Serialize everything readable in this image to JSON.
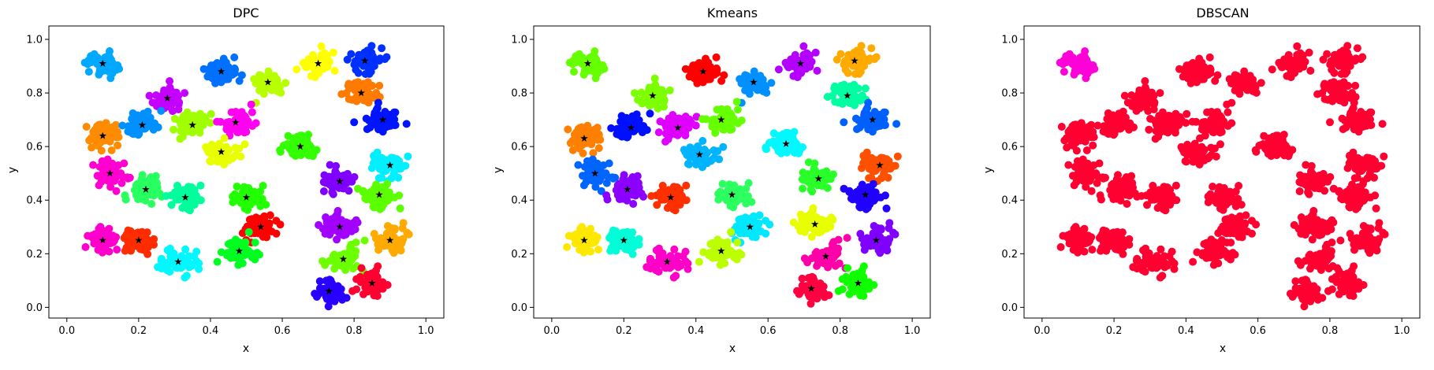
{
  "chart_data": [
    {
      "type": "scatter",
      "title": "DPC",
      "xlabel": "x",
      "ylabel": "y",
      "xlim": [
        -0.05,
        1.05
      ],
      "ylim": [
        -0.04,
        1.05
      ],
      "xticks": [
        "0.0",
        "0.2",
        "0.4",
        "0.6",
        "0.8",
        "1.0"
      ],
      "yticks": [
        "0.0",
        "0.2",
        "0.4",
        "0.6",
        "0.8",
        "1.0"
      ],
      "grid": false,
      "clusters": [
        {
          "center": [
            0.1,
            0.91
          ],
          "color": "#00a8ff"
        },
        {
          "center": [
            0.43,
            0.88
          ],
          "color": "#0070ff"
        },
        {
          "center": [
            0.56,
            0.84
          ],
          "color": "#b8ff00"
        },
        {
          "center": [
            0.7,
            0.91
          ],
          "color": "#ffff00"
        },
        {
          "center": [
            0.83,
            0.92
          ],
          "color": "#0030ff"
        },
        {
          "center": [
            0.28,
            0.78
          ],
          "color": "#c400ff"
        },
        {
          "center": [
            0.82,
            0.8
          ],
          "color": "#ff7a00"
        },
        {
          "center": [
            0.1,
            0.64
          ],
          "color": "#ff8c00"
        },
        {
          "center": [
            0.21,
            0.68
          ],
          "color": "#0090ff"
        },
        {
          "center": [
            0.35,
            0.68
          ],
          "color": "#a0ff00"
        },
        {
          "center": [
            0.47,
            0.69
          ],
          "color": "#ff00f0"
        },
        {
          "center": [
            0.88,
            0.7
          ],
          "color": "#0014ff"
        },
        {
          "center": [
            0.65,
            0.6
          ],
          "color": "#34ff00"
        },
        {
          "center": [
            0.43,
            0.58
          ],
          "color": "#e8ff00"
        },
        {
          "center": [
            0.12,
            0.5
          ],
          "color": "#ff00d0"
        },
        {
          "center": [
            0.22,
            0.44
          ],
          "color": "#28ff60"
        },
        {
          "center": [
            0.33,
            0.41
          ],
          "color": "#00ff9c"
        },
        {
          "center": [
            0.5,
            0.41
          ],
          "color": "#22ff00"
        },
        {
          "center": [
            0.76,
            0.47
          ],
          "color": "#8000ff"
        },
        {
          "center": [
            0.9,
            0.53
          ],
          "color": "#00f0ff"
        },
        {
          "center": [
            0.87,
            0.42
          ],
          "color": "#5cff00"
        },
        {
          "center": [
            0.54,
            0.3
          ],
          "color": "#ff0000"
        },
        {
          "center": [
            0.76,
            0.3
          ],
          "color": "#a200ff"
        },
        {
          "center": [
            0.1,
            0.25
          ],
          "color": "#ff00cc"
        },
        {
          "center": [
            0.2,
            0.25
          ],
          "color": "#ff2c00"
        },
        {
          "center": [
            0.31,
            0.17
          ],
          "color": "#00f8ff"
        },
        {
          "center": [
            0.48,
            0.21
          ],
          "color": "#00ff20"
        },
        {
          "center": [
            0.77,
            0.18
          ],
          "color": "#6cff00"
        },
        {
          "center": [
            0.9,
            0.25
          ],
          "color": "#ffaa00"
        },
        {
          "center": [
            0.73,
            0.06
          ],
          "color": "#2800ff"
        },
        {
          "center": [
            0.85,
            0.09
          ],
          "color": "#ff0030"
        }
      ]
    },
    {
      "type": "scatter",
      "title": "Kmeans",
      "xlabel": "x",
      "ylabel": "y",
      "xlim": [
        -0.05,
        1.05
      ],
      "ylim": [
        -0.04,
        1.05
      ],
      "xticks": [
        "0.0",
        "0.2",
        "0.4",
        "0.6",
        "0.8",
        "1.0"
      ],
      "yticks": [
        "0.0",
        "0.2",
        "0.4",
        "0.6",
        "0.8",
        "1.0"
      ],
      "grid": false,
      "clusters": [
        {
          "center": [
            0.1,
            0.91
          ],
          "color": "#66ff00"
        },
        {
          "center": [
            0.42,
            0.88
          ],
          "color": "#ff0000"
        },
        {
          "center": [
            0.56,
            0.84
          ],
          "color": "#0090ff"
        },
        {
          "center": [
            0.69,
            0.91
          ],
          "color": "#b400ff"
        },
        {
          "center": [
            0.84,
            0.92
          ],
          "color": "#ffaa00"
        },
        {
          "center": [
            0.28,
            0.79
          ],
          "color": "#7cff00"
        },
        {
          "center": [
            0.82,
            0.79
          ],
          "color": "#00ffa0"
        },
        {
          "center": [
            0.09,
            0.63
          ],
          "color": "#ff8000"
        },
        {
          "center": [
            0.22,
            0.67
          ],
          "color": "#0010ff"
        },
        {
          "center": [
            0.35,
            0.67
          ],
          "color": "#e000ff"
        },
        {
          "center": [
            0.47,
            0.7
          ],
          "color": "#66ff00"
        },
        {
          "center": [
            0.89,
            0.7
          ],
          "color": "#0060ff"
        },
        {
          "center": [
            0.65,
            0.61
          ],
          "color": "#00f8ff"
        },
        {
          "center": [
            0.41,
            0.57
          ],
          "color": "#00b4ff"
        },
        {
          "center": [
            0.12,
            0.5
          ],
          "color": "#0064ff"
        },
        {
          "center": [
            0.21,
            0.44
          ],
          "color": "#8c00ff"
        },
        {
          "center": [
            0.33,
            0.41
          ],
          "color": "#ff3000"
        },
        {
          "center": [
            0.5,
            0.42
          ],
          "color": "#2cff60"
        },
        {
          "center": [
            0.74,
            0.48
          ],
          "color": "#28ff28"
        },
        {
          "center": [
            0.91,
            0.53
          ],
          "color": "#ff5000"
        },
        {
          "center": [
            0.87,
            0.42
          ],
          "color": "#2000ff"
        },
        {
          "center": [
            0.55,
            0.3
          ],
          "color": "#00e8ff"
        },
        {
          "center": [
            0.73,
            0.31
          ],
          "color": "#e8ff00"
        },
        {
          "center": [
            0.09,
            0.25
          ],
          "color": "#ffe800"
        },
        {
          "center": [
            0.2,
            0.25
          ],
          "color": "#00ffd8"
        },
        {
          "center": [
            0.32,
            0.17
          ],
          "color": "#ff00c8"
        },
        {
          "center": [
            0.47,
            0.21
          ],
          "color": "#bcff00"
        },
        {
          "center": [
            0.76,
            0.19
          ],
          "color": "#ff00a8"
        },
        {
          "center": [
            0.9,
            0.25
          ],
          "color": "#8000ff"
        },
        {
          "center": [
            0.72,
            0.07
          ],
          "color": "#ff0040"
        },
        {
          "center": [
            0.85,
            0.09
          ],
          "color": "#10ff00"
        }
      ]
    },
    {
      "type": "scatter",
      "title": "DBSCAN",
      "xlabel": "x",
      "ylabel": "y",
      "xlim": [
        -0.05,
        1.05
      ],
      "ylim": [
        -0.04,
        1.05
      ],
      "xticks": [
        "0.0",
        "0.2",
        "0.4",
        "0.6",
        "0.8",
        "1.0"
      ],
      "yticks": [
        "0.0",
        "0.2",
        "0.4",
        "0.6",
        "0.8",
        "1.0"
      ],
      "grid": false,
      "clusters": [
        {
          "center": [
            0.1,
            0.91
          ],
          "color": "#ff00d8"
        },
        {
          "center": [
            0.43,
            0.88
          ],
          "color": "#ff0030"
        },
        {
          "center": [
            0.56,
            0.84
          ],
          "color": "#ff0030"
        },
        {
          "center": [
            0.7,
            0.91
          ],
          "color": "#ff0030"
        },
        {
          "center": [
            0.83,
            0.92
          ],
          "color": "#ff0030"
        },
        {
          "center": [
            0.28,
            0.78
          ],
          "color": "#ff0030"
        },
        {
          "center": [
            0.82,
            0.8
          ],
          "color": "#ff0030"
        },
        {
          "center": [
            0.1,
            0.64
          ],
          "color": "#ff0030"
        },
        {
          "center": [
            0.21,
            0.68
          ],
          "color": "#ff0030"
        },
        {
          "center": [
            0.35,
            0.68
          ],
          "color": "#ff0030"
        },
        {
          "center": [
            0.47,
            0.69
          ],
          "color": "#ff0030"
        },
        {
          "center": [
            0.88,
            0.7
          ],
          "color": "#ff0030"
        },
        {
          "center": [
            0.65,
            0.6
          ],
          "color": "#ff0030"
        },
        {
          "center": [
            0.43,
            0.58
          ],
          "color": "#ff0030"
        },
        {
          "center": [
            0.12,
            0.5
          ],
          "color": "#ff0030"
        },
        {
          "center": [
            0.22,
            0.44
          ],
          "color": "#ff0030"
        },
        {
          "center": [
            0.33,
            0.41
          ],
          "color": "#ff0030"
        },
        {
          "center": [
            0.5,
            0.41
          ],
          "color": "#ff0030"
        },
        {
          "center": [
            0.76,
            0.47
          ],
          "color": "#ff0030"
        },
        {
          "center": [
            0.9,
            0.53
          ],
          "color": "#ff0030"
        },
        {
          "center": [
            0.87,
            0.42
          ],
          "color": "#ff0030"
        },
        {
          "center": [
            0.54,
            0.3
          ],
          "color": "#ff0030"
        },
        {
          "center": [
            0.76,
            0.3
          ],
          "color": "#ff0030"
        },
        {
          "center": [
            0.1,
            0.25
          ],
          "color": "#ff0030"
        },
        {
          "center": [
            0.2,
            0.25
          ],
          "color": "#ff0030"
        },
        {
          "center": [
            0.31,
            0.17
          ],
          "color": "#ff0030"
        },
        {
          "center": [
            0.48,
            0.21
          ],
          "color": "#ff0030"
        },
        {
          "center": [
            0.77,
            0.18
          ],
          "color": "#ff0030"
        },
        {
          "center": [
            0.9,
            0.25
          ],
          "color": "#ff0030"
        },
        {
          "center": [
            0.73,
            0.06
          ],
          "color": "#ff0030"
        },
        {
          "center": [
            0.85,
            0.09
          ],
          "color": "#ff0030"
        }
      ]
    }
  ]
}
